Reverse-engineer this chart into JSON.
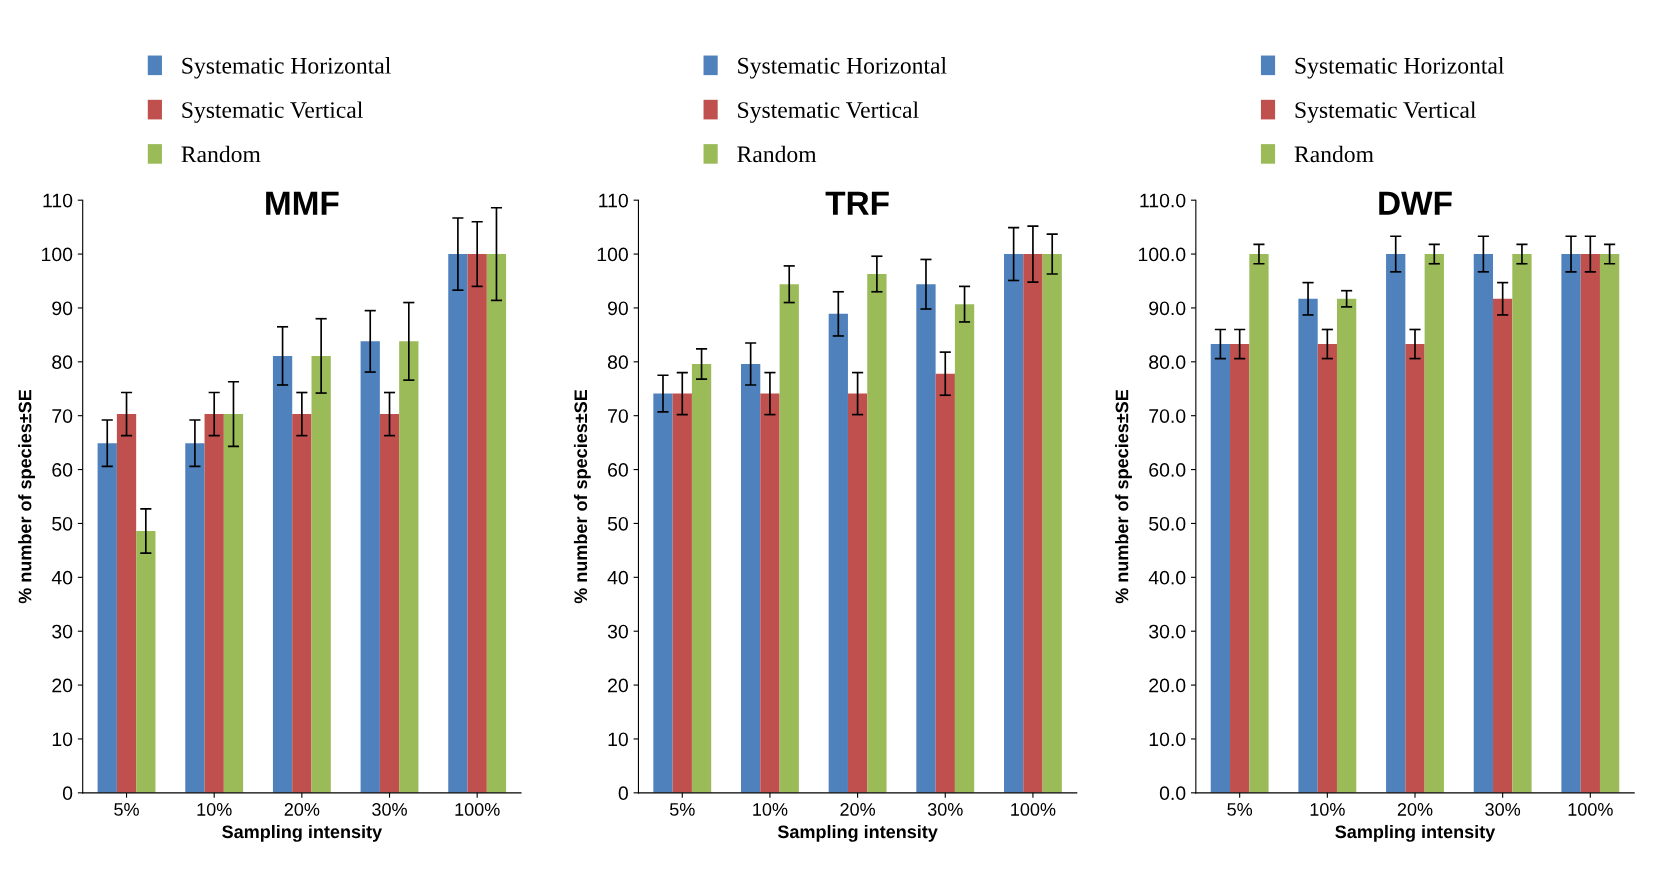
{
  "chart_data": [
    {
      "type": "bar",
      "title": "MMF",
      "xlabel": "Sampling intensity",
      "ylabel": "% number of species±SE",
      "categories": [
        "5%",
        "10%",
        "20%",
        "30%",
        "100%"
      ],
      "ylim": [
        0,
        110
      ],
      "yticks": [
        0,
        10,
        20,
        30,
        40,
        50,
        60,
        70,
        80,
        90,
        100,
        110
      ],
      "grid": false,
      "legend": "top left",
      "series": [
        {
          "name": "Systematic Horizontal",
          "color": "#4f81bd",
          "values": [
            64.9,
            64.9,
            81.1,
            83.8,
            100
          ],
          "errors": [
            4.3,
            4.3,
            5.4,
            5.7,
            6.7
          ]
        },
        {
          "name": "Systematic Vertical",
          "color": "#c0504d",
          "values": [
            70.3,
            70.3,
            70.3,
            70.3,
            100
          ],
          "errors": [
            4,
            4,
            4,
            4,
            6
          ]
        },
        {
          "name": "Random",
          "color": "#9bbb59",
          "values": [
            48.6,
            70.3,
            81.1,
            83.8,
            100
          ],
          "errors": [
            4.1,
            6,
            6.9,
            7.2,
            8.6
          ]
        }
      ]
    },
    {
      "type": "bar",
      "title": "TRF",
      "xlabel": "Sampling intensity",
      "ylabel": "% number of species±SE",
      "categories": [
        "5%",
        "10%",
        "20%",
        "30%",
        "100%"
      ],
      "ylim": [
        0,
        110
      ],
      "yticks": [
        0,
        10,
        20,
        30,
        40,
        50,
        60,
        70,
        80,
        90,
        100,
        110
      ],
      "grid": false,
      "legend": "top left",
      "series": [
        {
          "name": "Systematic Horizontal",
          "color": "#4f81bd",
          "values": [
            74.1,
            79.6,
            88.9,
            94.4,
            100
          ],
          "errors": [
            3.4,
            3.9,
            4.1,
            4.6,
            4.9
          ]
        },
        {
          "name": "Systematic Vertical",
          "color": "#c0504d",
          "values": [
            74.1,
            74.1,
            74.1,
            77.8,
            100
          ],
          "errors": [
            3.9,
            3.9,
            3.9,
            4,
            5.2
          ]
        },
        {
          "name": "Random",
          "color": "#9bbb59",
          "values": [
            79.6,
            94.4,
            96.3,
            90.7,
            100
          ],
          "errors": [
            2.8,
            3.4,
            3.3,
            3.3,
            3.7
          ]
        }
      ]
    },
    {
      "type": "bar",
      "title": "DWF",
      "xlabel": "Sampling intensity",
      "ylabel": "% number of species±SE",
      "categories": [
        "5%",
        "10%",
        "20%",
        "30%",
        "100%"
      ],
      "ylim": [
        0,
        110
      ],
      "yticks": [
        {
          "value": 0,
          "label": "0.0"
        },
        {
          "value": 10,
          "label": "10.0"
        },
        {
          "value": 20,
          "label": "20.0"
        },
        {
          "value": 30,
          "label": "30.0"
        },
        {
          "value": 40,
          "label": "40.0"
        },
        {
          "value": 50,
          "label": "50.0"
        },
        {
          "value": 60,
          "label": "60.0"
        },
        {
          "value": 70,
          "label": "70.0"
        },
        {
          "value": 80,
          "label": "80.0"
        },
        {
          "value": 90,
          "label": "90.0"
        },
        {
          "value": 100,
          "label": "100.0"
        },
        {
          "value": 110,
          "label": "110.0"
        }
      ],
      "grid": false,
      "legend": "top left",
      "series": [
        {
          "name": "Systematic Horizontal",
          "color": "#4f81bd",
          "values": [
            83.3,
            91.7,
            100,
            100,
            100
          ],
          "errors": [
            2.7,
            3,
            3.3,
            3.3,
            3.3
          ]
        },
        {
          "name": "Systematic Vertical",
          "color": "#c0504d",
          "values": [
            83.3,
            83.3,
            83.3,
            91.7,
            100
          ],
          "errors": [
            2.7,
            2.7,
            2.7,
            3,
            3.3
          ]
        },
        {
          "name": "Random",
          "color": "#9bbb59",
          "values": [
            100,
            91.7,
            100,
            100,
            100
          ],
          "errors": [
            1.8,
            1.5,
            1.8,
            1.8,
            1.8
          ]
        }
      ]
    }
  ]
}
